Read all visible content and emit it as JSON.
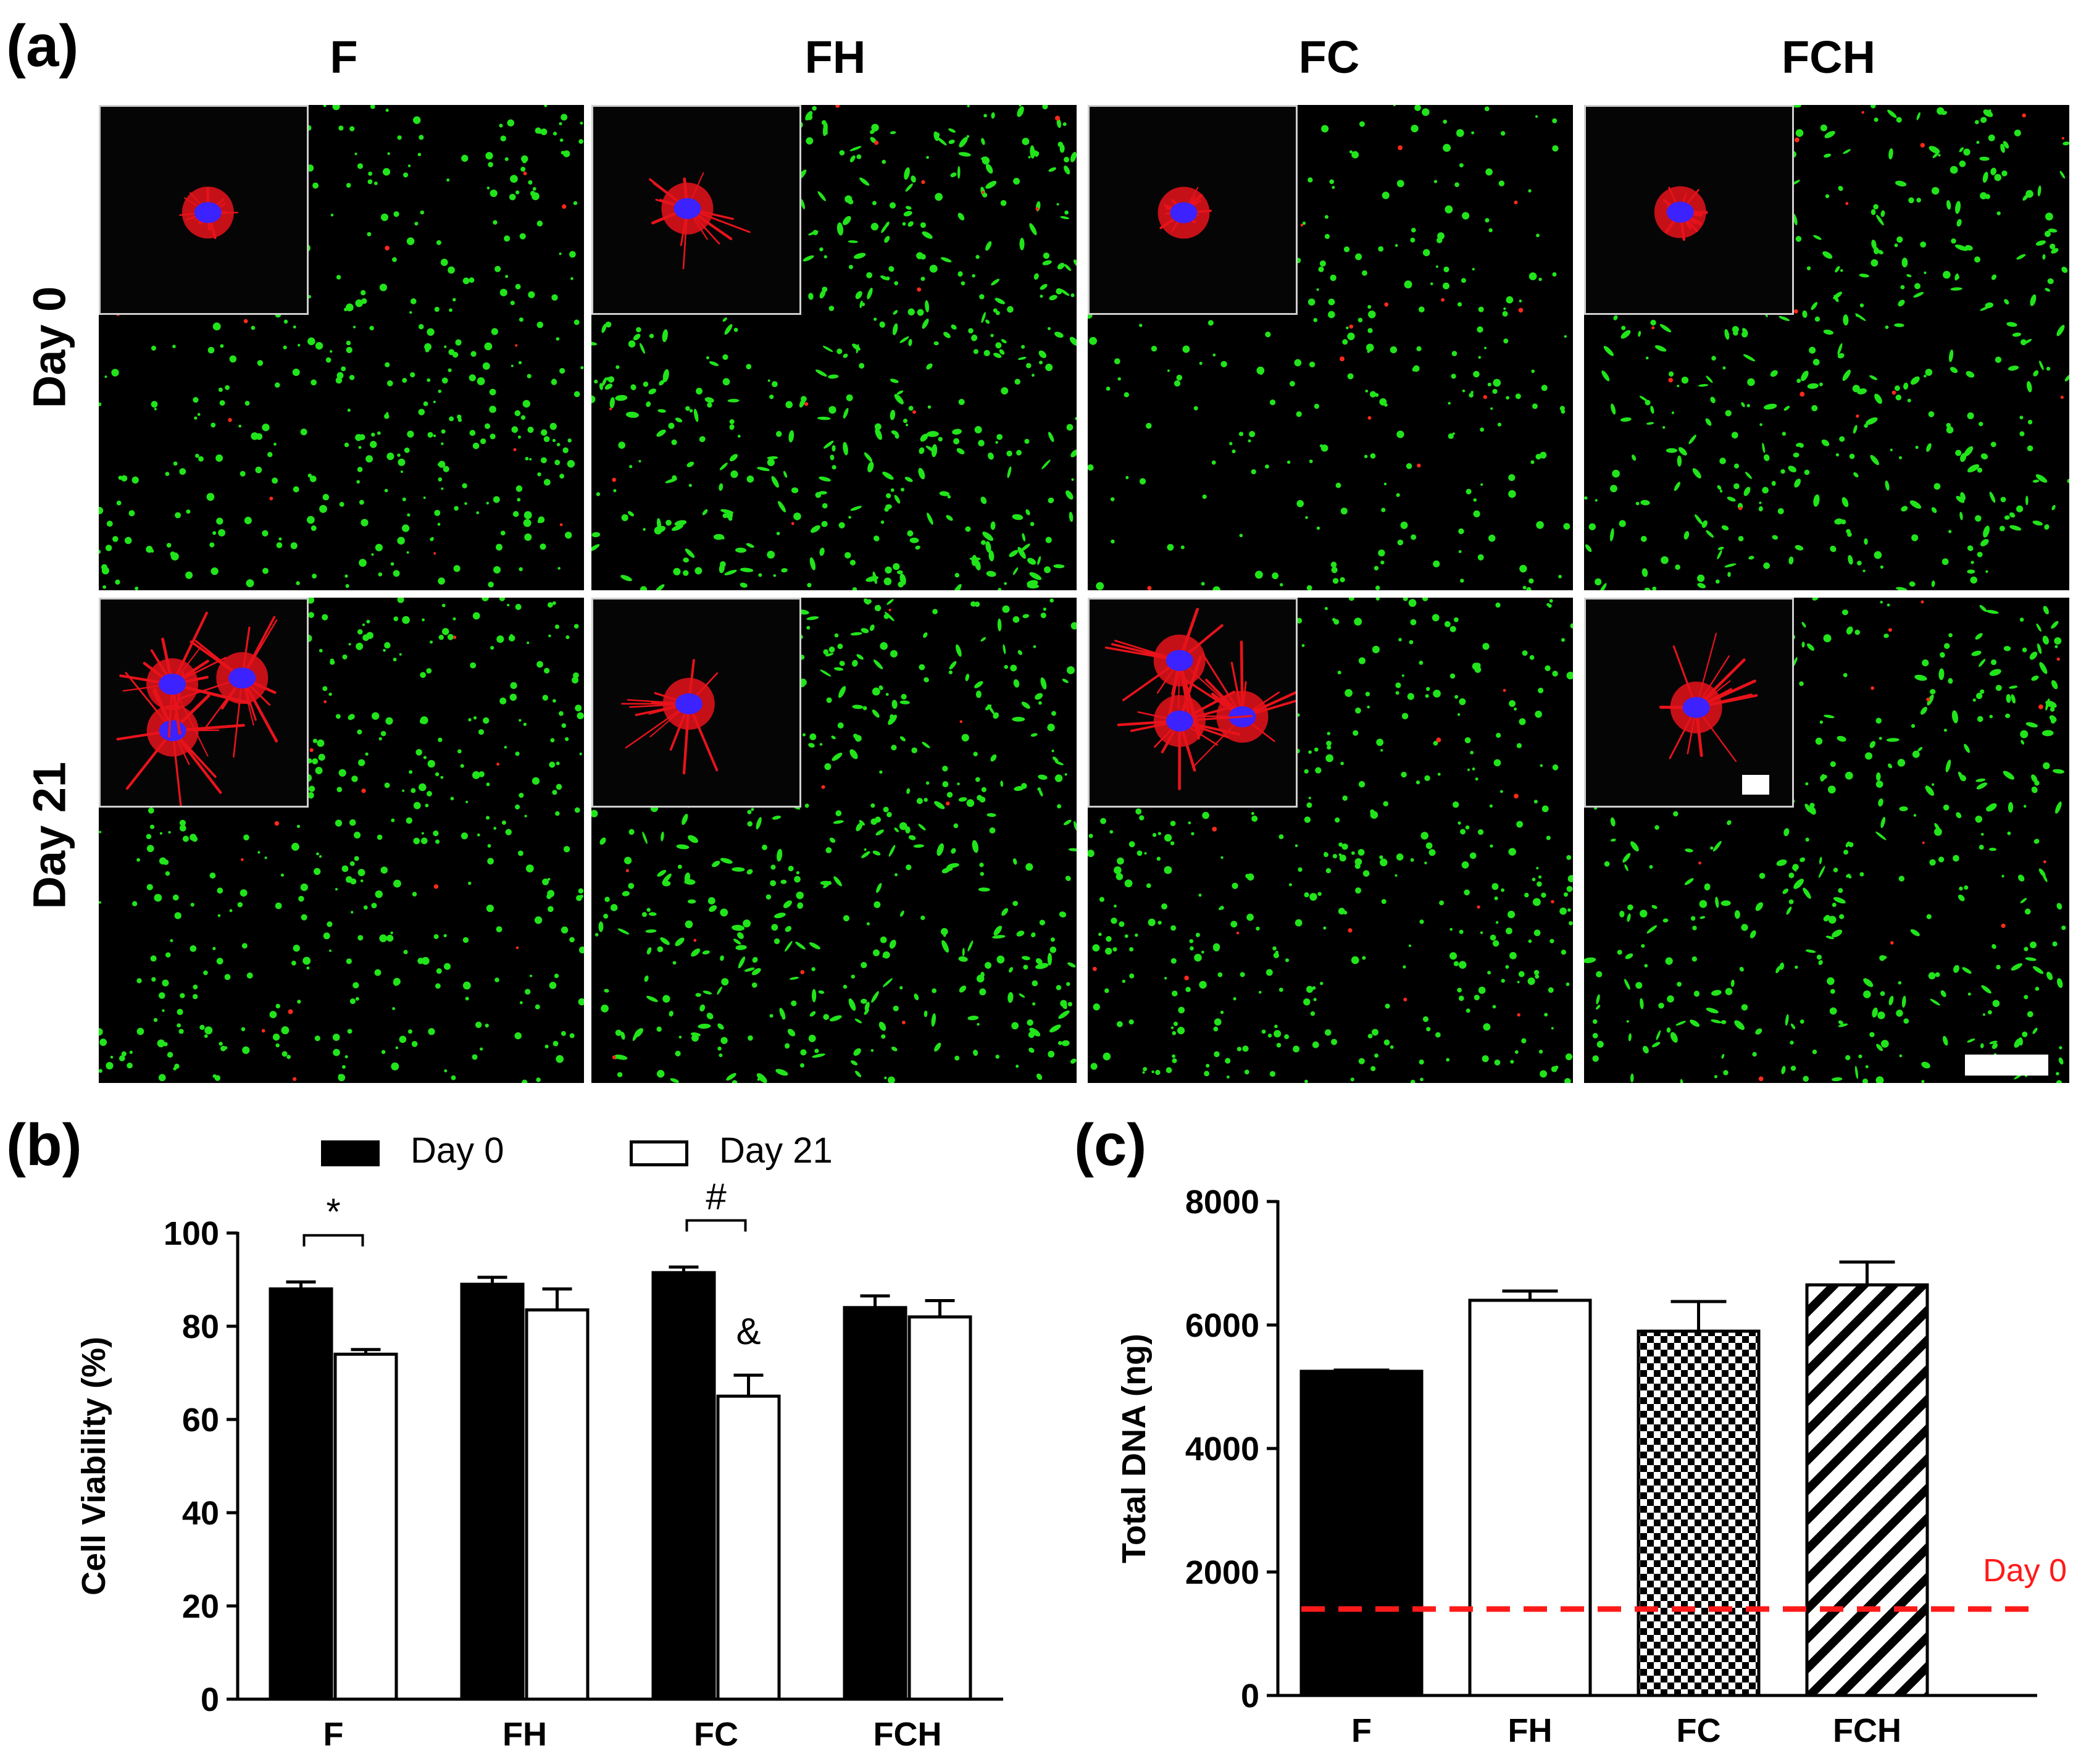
{
  "panel_a": {
    "letter": "(a)",
    "columns": [
      "F",
      "FH",
      "FC",
      "FCH"
    ],
    "rows": [
      "Day 0",
      "Day 21"
    ]
  },
  "panel_b": {
    "letter": "(b)",
    "legend": [
      "Day 0",
      "Day 21"
    ]
  },
  "panel_c": {
    "letter": "(c)"
  },
  "colors": {
    "live_cells": "#22e41b",
    "dead_cells": "#ff2a1a",
    "actin": "#e8131b",
    "nuclei": "#3b22ff",
    "reference_line": "#ff1a1a"
  },
  "chart_data": [
    {
      "id": "b",
      "type": "bar",
      "categories": [
        "F",
        "FH",
        "FC",
        "FCH"
      ],
      "series": [
        {
          "name": "Day 0",
          "values": [
            88,
            89,
            91.5,
            84
          ],
          "errors": [
            1.5,
            1.5,
            1.2,
            2.5
          ],
          "fill": "#000000"
        },
        {
          "name": "Day 21",
          "values": [
            74,
            83.5,
            65,
            82
          ],
          "errors": [
            1,
            4.5,
            4.5,
            3.5
          ],
          "fill": "#ffffff"
        }
      ],
      "ylabel": "Cell Viability (%)",
      "ylim": [
        0,
        100
      ],
      "yticks": [
        0,
        20,
        40,
        60,
        80,
        100
      ],
      "annotations": [
        {
          "text": "*",
          "category": "F",
          "type": "bracket"
        },
        {
          "text": "#",
          "category": "FC",
          "type": "bracket"
        },
        {
          "text": "&",
          "category": "FC",
          "series": "Day 21"
        }
      ],
      "legend_position": "top"
    },
    {
      "id": "c",
      "type": "bar",
      "categories": [
        "F",
        "FH",
        "FC",
        "FCH"
      ],
      "values": [
        5250,
        6400,
        5900,
        6650
      ],
      "errors": [
        20,
        150,
        480,
        370
      ],
      "patterns": [
        "solid",
        "open",
        "checker",
        "diagonal"
      ],
      "ylabel": "Total DNA (ng)",
      "ylim": [
        0,
        8000
      ],
      "yticks": [
        0,
        2000,
        4000,
        6000,
        8000
      ],
      "reference_line": {
        "value": 1400,
        "label": "Day 0"
      }
    }
  ]
}
